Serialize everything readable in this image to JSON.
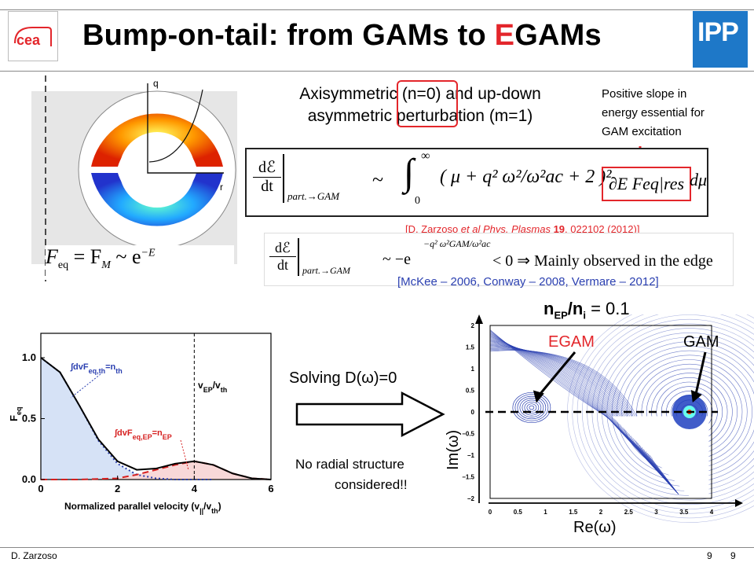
{
  "slide": {
    "title_prefix": "Bump-on-tail: from GAMs to ",
    "title_highlight": "E",
    "title_suffix": "GAMs",
    "footer_author": "D. Zarzoso",
    "footer_page_a": "9",
    "footer_page_b": "9"
  },
  "logos": {
    "left": "cea",
    "right": "IPP"
  },
  "colors": {
    "accent": "#e3262b",
    "ipp_blue": "#1e78c8",
    "contour_blue": "#2a3fb0"
  },
  "torus_plot": {
    "q_label": "q",
    "r_label": "r"
  },
  "feq_formula": {
    "lhs": "F",
    "sub": "eq",
    "mid": " = F",
    "sub2": "M",
    "rhs": " ~ e",
    "exp": "−E"
  },
  "text_blocks": {
    "axisymmetric_line1": "Axisymmetric (n=0) and up-down",
    "axisymmetric_line2": "asymmetric perturbation (m=1)",
    "slope_line1": "Positive slope in",
    "slope_line2": "energy essential for",
    "slope_line3": "GAM excitation",
    "ref1_pre": "[D. Zarzoso ",
    "ref1_italic": "et al Phys. Plasmas",
    "ref1_bold": " 19",
    "ref1_post": ", 022102 (2012)]",
    "ref2": "[McKee – 2006, Conway – 2008, Vermare – 2012]",
    "solving": "Solving D(ω)=0",
    "no_radial_1": "No radial structure",
    "no_radial_2": "considered!!",
    "ratio_label": "n",
    "ratio_sub1": "EP",
    "ratio_mid": "/n",
    "ratio_sub2": "i",
    "ratio_value": " = 0.1",
    "egam_label": "EGAM",
    "gam_label": "GAM",
    "im_label": "Im(ω)",
    "re_label": "Re(ω)"
  },
  "equation1": {
    "lhs_top": "dℰ",
    "lhs_bot": "dt",
    "sub": "part.→GAM",
    "sim": "~",
    "int_upper": "∞",
    "int_lower": "0",
    "body": "( μ + q² ω²/ω²ac + 2 )²",
    "boxed": "∂E Feq|res",
    "tail": "dμ"
  },
  "equation2": {
    "lhs_top": "dℰ",
    "lhs_bot": "dt",
    "sub": "part.→GAM",
    "rhs": "~ −e",
    "exp": "−q² ω²GAM/ω²ac",
    "tail": "< 0 ⇒ Mainly observed in the edge"
  },
  "chart_data": [
    {
      "type": "line",
      "ylabel": "F",
      "ylabel_sub": "eq",
      "xlabel": "Normalized parallel velocity  (v",
      "xlabel_sub": "||",
      "xlabel_end": "/v",
      "xlabel_sub2": "th",
      "xlabel_close": ")",
      "xlim": [
        0,
        6
      ],
      "ylim": [
        0,
        1.2
      ],
      "xticks": [
        "0",
        "2",
        "4",
        "6"
      ],
      "yticks": [
        "0.0",
        "0.5",
        "1.0"
      ],
      "vline_label": "v",
      "vline_sub": "EP",
      "vline_end": "/v",
      "vline_sub2": "th",
      "ann_th": "∫dvF",
      "ann_th_sub": "eq,th",
      "ann_th_end": "=n",
      "ann_th_sub2": "th",
      "ann_ep": "∫dvF",
      "ann_ep_sub": "eq,EP",
      "ann_ep_end": "=n",
      "ann_ep_sub2": "EP",
      "series": [
        {
          "x": [
            0,
            0.5,
            1.0,
            1.5,
            2.0,
            2.5,
            3.0,
            3.5,
            4.0,
            4.5,
            5.0,
            5.5,
            6.0
          ],
          "values": [
            1.0,
            0.88,
            0.61,
            0.33,
            0.15,
            0.08,
            0.09,
            0.13,
            0.15,
            0.12,
            0.05,
            0.01,
            0.0
          ]
        },
        {
          "x": [
            0,
            0.5,
            1.0,
            1.5,
            2.0,
            2.5,
            3.0,
            3.5,
            4.0,
            4.5
          ],
          "values": [
            1.0,
            0.88,
            0.61,
            0.32,
            0.13,
            0.04,
            0.01,
            0.0,
            0.0,
            0.0
          ]
        },
        {
          "x": [
            0,
            1.0,
            2.0,
            2.5,
            3.0,
            3.5,
            4.0,
            4.5,
            5.0,
            5.5,
            6.0
          ],
          "values": [
            0.0,
            0.0,
            0.01,
            0.04,
            0.08,
            0.12,
            0.15,
            0.12,
            0.05,
            0.01,
            0.0
          ]
        }
      ]
    },
    {
      "type": "line",
      "xlim": [
        0,
        4
      ],
      "ylim": [
        -2,
        2
      ],
      "xticks": [
        "0",
        "0.5",
        "1",
        "1.5",
        "2",
        "2.5",
        "3",
        "3.5",
        "4"
      ],
      "yticks": [
        "2",
        "1.5",
        "1",
        "0.5",
        "0",
        "−0.5",
        "−1",
        "−1.5",
        "−2"
      ],
      "zeros": [
        {
          "x": 0.75,
          "y": 0.1
        },
        {
          "x": 3.6,
          "y": 0.0
        }
      ]
    }
  ]
}
